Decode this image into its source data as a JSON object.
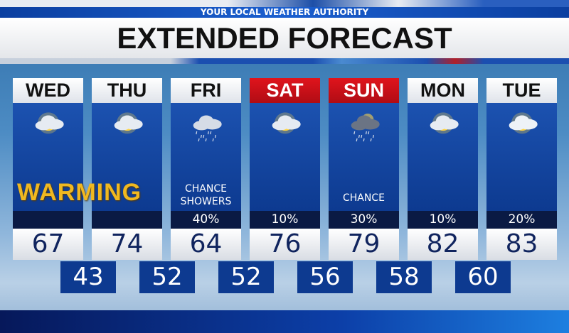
{
  "header": {
    "tagline": "YOUR LOCAL WEATHER AUTHORITY",
    "title": "EXTENDED FORECAST"
  },
  "banner": {
    "text": "WARMING",
    "color": "#f0b820"
  },
  "colors": {
    "weekend_header": "#e0141c",
    "panel": "#1c52b0",
    "low_box": "#0d3a90"
  },
  "days": [
    {
      "name": "WED",
      "icon": "sun-cloud-icon",
      "condition": "",
      "precip": "",
      "high": "67",
      "low": "43",
      "weekend": false
    },
    {
      "name": "THU",
      "icon": "sun-cloud-icon",
      "condition": "",
      "precip": "",
      "high": "74",
      "low": "52",
      "weekend": false
    },
    {
      "name": "FRI",
      "icon": "rain-cloud-icon",
      "condition": "CHANCE SHOWERS",
      "precip": "40%",
      "high": "64",
      "low": "52",
      "weekend": false
    },
    {
      "name": "SAT",
      "icon": "sun-cloud-icon",
      "condition": "",
      "precip": "10%",
      "high": "76",
      "low": "56",
      "weekend": true
    },
    {
      "name": "SUN",
      "icon": "storm-cloud-rain-icon",
      "condition": "CHANCE",
      "precip": "30%",
      "high": "79",
      "low": "58",
      "weekend": true
    },
    {
      "name": "MON",
      "icon": "sun-cloud-icon",
      "condition": "",
      "precip": "10%",
      "high": "82",
      "low": "60",
      "weekend": false
    },
    {
      "name": "TUE",
      "icon": "partly-cloudy-icon",
      "condition": "",
      "precip": "20%",
      "high": "83",
      "low": "",
      "weekend": false
    }
  ]
}
